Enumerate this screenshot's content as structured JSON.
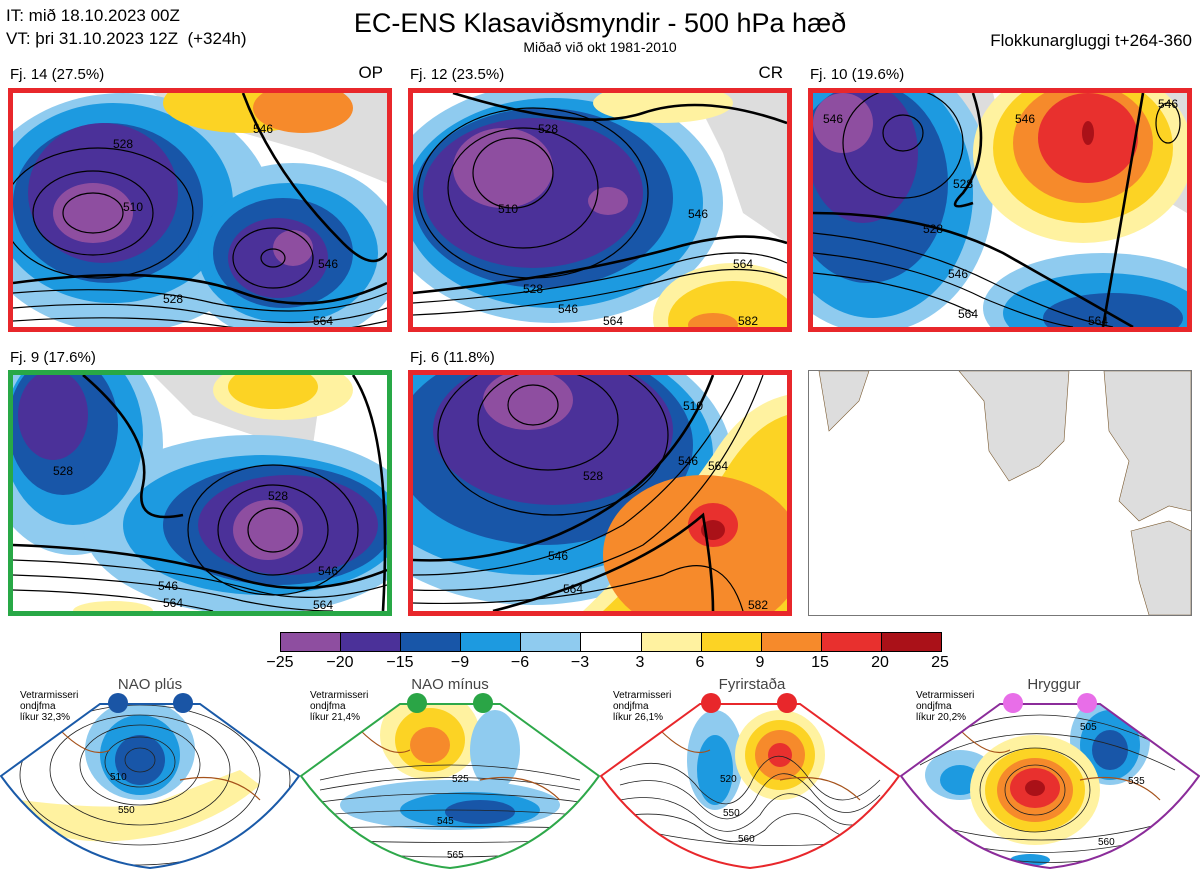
{
  "header": {
    "it": "IT: mið 18.10.2023 00Z",
    "vt": "VT: þri 31.10.2023 12Z  (+324h)",
    "title": "EC-ENS Klasaviðsmyndir - 500 hPa hæð",
    "subtitle": "Miðað við okt 1981-2010",
    "window": "Flokkunargluggi t+264-360"
  },
  "panels": [
    {
      "label": "Fj. 14 (27.5%)",
      "tag": "OP",
      "border": "#e8272b",
      "contours": [
        "528",
        "510",
        "528",
        "546",
        "546",
        "564"
      ]
    },
    {
      "label": "Fj. 12 (23.5%)",
      "tag": "CR",
      "border": "#e8272b",
      "contours": [
        "528",
        "510",
        "546",
        "528",
        "546",
        "564",
        "564",
        "582"
      ]
    },
    {
      "label": "Fj. 10 (19.6%)",
      "tag": "",
      "border": "#e8272b",
      "contours": [
        "546",
        "528",
        "546",
        "528",
        "546",
        "564",
        "564",
        "546"
      ]
    },
    {
      "label": "Fj. 9 (17.6%)",
      "tag": "",
      "border": "#28a846",
      "contours": [
        "528",
        "528",
        "546",
        "546",
        "564",
        "564"
      ]
    },
    {
      "label": "Fj. 6 (11.8%)",
      "tag": "",
      "border": "#e8272b",
      "contours": [
        "510",
        "528",
        "546",
        "546",
        "564",
        "564",
        "582"
      ]
    }
  ],
  "colorbar": {
    "ticks": [
      "−25",
      "−20",
      "−15",
      "−9",
      "−6",
      "−3",
      "3",
      "6",
      "9",
      "15",
      "20",
      "25"
    ],
    "colors": [
      "#8e4ea0",
      "#4b3199",
      "#1856a8",
      "#1d9ae0",
      "#8fcbef",
      "#ffffff",
      "#fff2a0",
      "#fcd324",
      "#f68a2b",
      "#e8302e",
      "#aa1118"
    ]
  },
  "regimes": [
    {
      "title": "NAO plús",
      "note": "Vetrarmisseri\nondjfma\nlíkur 32,3%",
      "color": "#1a5aa8",
      "dot": "#1a55a5",
      "labels": [
        "510",
        "550"
      ]
    },
    {
      "title": "NAO mínus",
      "note": "Vetrarmisseri\nondjfma\nlíkur 21,4%",
      "color": "#2ea84a",
      "dot": "#2aa546",
      "labels": [
        "525",
        "545",
        "565"
      ]
    },
    {
      "title": "Fyrirstaða",
      "note": "Vetrarmisseri\nondjfma\nlíkur 26,1%",
      "color": "#e8272b",
      "dot": "#e8272b",
      "labels": [
        "520",
        "550",
        "560"
      ]
    },
    {
      "title": "Hryggur",
      "note": "Vetrarmisseri\nondjfma\nlíkur 20,2%",
      "color": "#8b2c9a",
      "dot": "#e86ee8",
      "labels": [
        "505",
        "535",
        "560"
      ]
    }
  ]
}
